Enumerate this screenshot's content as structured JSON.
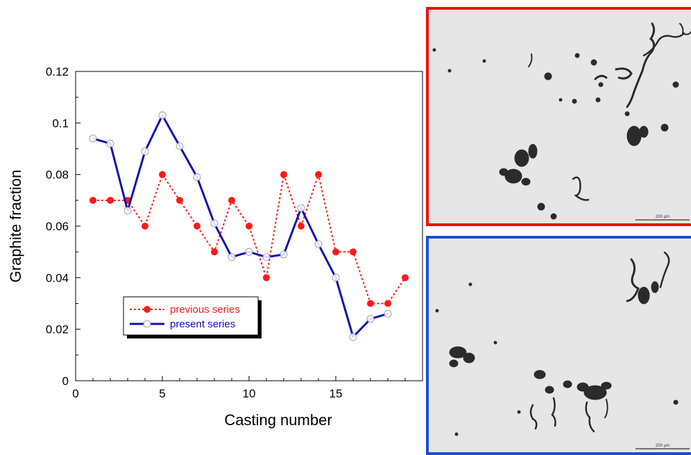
{
  "chart_data": {
    "type": "line",
    "xlabel": "Casting number",
    "ylabel": "Graphite fraction",
    "xlim": [
      0,
      20
    ],
    "ylim": [
      0,
      0.12
    ],
    "xticks": [
      0,
      5,
      10,
      15
    ],
    "yticks": [
      0,
      0.02,
      0.04,
      0.06,
      0.08,
      0.1,
      0.12
    ],
    "ytick_labels": [
      "0",
      "0.02",
      "0.04",
      "0.06",
      "0.08",
      "0.1",
      "0.12"
    ],
    "grid": false,
    "legend_position": "lower-left",
    "series": [
      {
        "name": "previous series",
        "color": "#ff1a1a",
        "line_style": "dotted",
        "marker": "filled-circle",
        "x": [
          1,
          2,
          3,
          4,
          5,
          6,
          7,
          8,
          9,
          10,
          11,
          12,
          13,
          14,
          15,
          16,
          17,
          18,
          19
        ],
        "y": [
          0.07,
          0.07,
          0.07,
          0.06,
          0.08,
          0.07,
          0.06,
          0.05,
          0.07,
          0.06,
          0.04,
          0.08,
          0.06,
          0.08,
          0.05,
          0.05,
          0.03,
          0.03,
          0.04
        ]
      },
      {
        "name": "present series",
        "color": "#1010b0",
        "line_style": "solid",
        "marker": "open-circle",
        "x": [
          1,
          2,
          3,
          4,
          5,
          6,
          7,
          8,
          9,
          10,
          11,
          12,
          13,
          14,
          15,
          16,
          17,
          18
        ],
        "y": [
          0.094,
          0.092,
          0.066,
          0.089,
          0.103,
          0.091,
          0.079,
          0.061,
          0.048,
          0.05,
          0.048,
          0.049,
          0.067,
          0.053,
          0.04,
          0.017,
          0.024,
          0.026
        ]
      }
    ]
  },
  "micrographs": [
    {
      "name": "top",
      "border_color": "#ee1111",
      "scale_bar_label": "200 μm"
    },
    {
      "name": "bottom",
      "border_color": "#1a4fd0",
      "scale_bar_label": "200 μm"
    }
  ]
}
